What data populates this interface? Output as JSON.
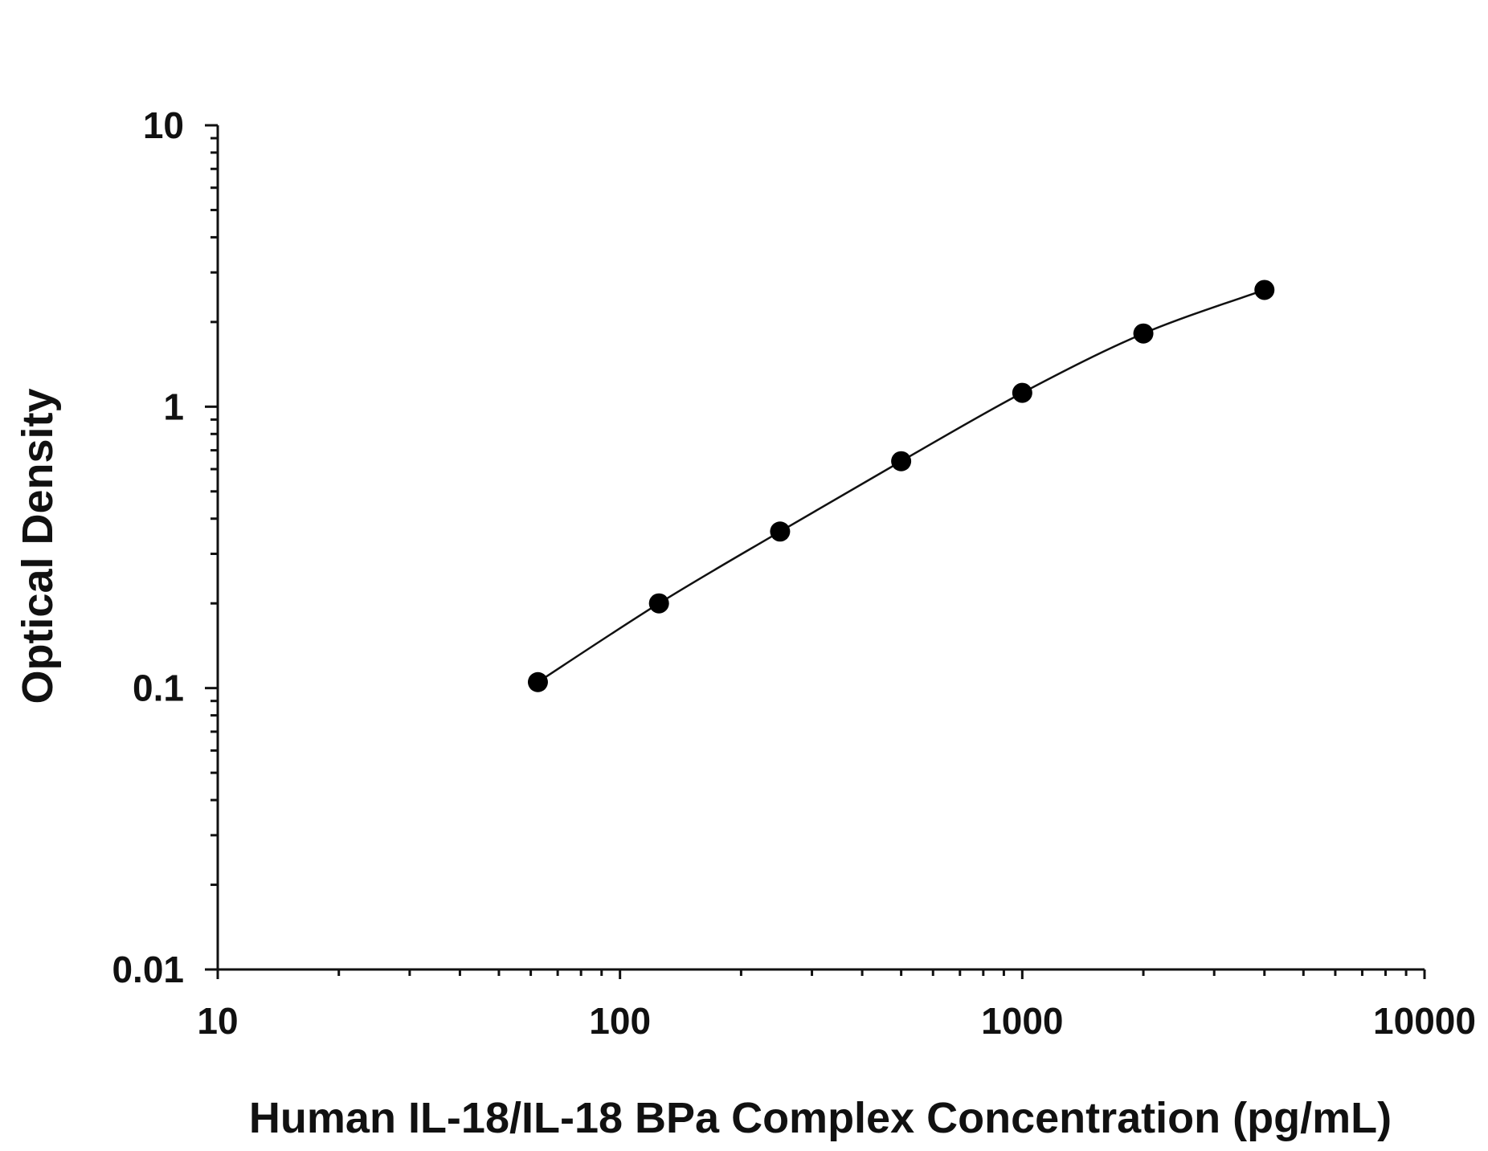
{
  "chart_data": {
    "type": "scatter",
    "title": "",
    "xlabel": "Human IL-18/IL-18 BPa Complex Concentration (pg/mL)",
    "ylabel": "Optical Density",
    "x_scale": "log",
    "y_scale": "log",
    "xlim": [
      10,
      10000
    ],
    "ylim": [
      0.01,
      10
    ],
    "x_ticks": [
      "10",
      "100",
      "1000",
      "10000"
    ],
    "y_ticks": [
      "0.01",
      "0.1",
      "1",
      "10"
    ],
    "grid": false,
    "legend": "none",
    "series": [
      {
        "x": [
          62.5,
          125,
          250,
          500,
          1000,
          2000,
          4000
        ],
        "y": [
          0.105,
          0.2,
          0.36,
          0.64,
          1.12,
          1.82,
          2.6
        ]
      }
    ],
    "fit_curve": true
  }
}
